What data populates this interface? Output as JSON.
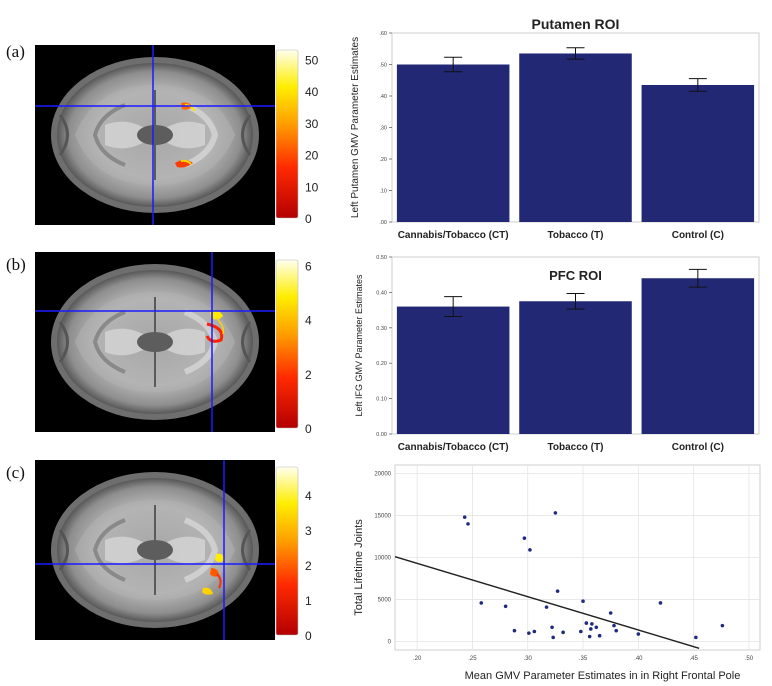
{
  "panels": [
    {
      "label": "(a)",
      "colorbar": {
        "ticks": [
          "50",
          "40",
          "30",
          "20",
          "10",
          "0"
        ],
        "max": 53
      }
    },
    {
      "label": "(b)",
      "colorbar": {
        "ticks": [
          "6",
          "4",
          "2",
          "0"
        ],
        "max": 6.2
      }
    },
    {
      "label": "(c)",
      "colorbar": {
        "ticks": [
          "4",
          "3",
          "2",
          "1",
          "0"
        ],
        "max": 4.8
      }
    }
  ],
  "chart_data": [
    {
      "type": "bar",
      "title": "Putamen ROI",
      "ylabel": "Left Putamen GMV Parameter Estimates",
      "categories": [
        "Cannabis/Tobacco (CT)",
        "Tobacco (T)",
        "Control (C)"
      ],
      "values": [
        0.5,
        0.535,
        0.435
      ],
      "errors": [
        0.023,
        0.018,
        0.02
      ],
      "ylim": [
        0.0,
        0.6
      ],
      "yticks": [
        ".00",
        ".10",
        ".20",
        ".30",
        ".40",
        ".50",
        ".60"
      ],
      "ytick_values": [
        0.0,
        0.1,
        0.2,
        0.3,
        0.4,
        0.5,
        0.6
      ],
      "bar_color": "#232875"
    },
    {
      "type": "bar",
      "title": "PFC ROI",
      "ylabel": "Left IFG GMV Parameter Estimates",
      "categories": [
        "Cannabis/Tobacco (CT)",
        "Tobacco (T)",
        "Control (C)"
      ],
      "values": [
        0.36,
        0.375,
        0.44
      ],
      "errors": [
        0.028,
        0.022,
        0.025
      ],
      "ylim": [
        0.0,
        0.5
      ],
      "yticks": [
        "0.00",
        "0.10",
        "0.20",
        "0.30",
        "0.40",
        "0.50"
      ],
      "ytick_values": [
        0.0,
        0.1,
        0.2,
        0.3,
        0.4,
        0.5
      ],
      "bar_color": "#232875"
    },
    {
      "type": "scatter",
      "xlabel": "Mean GMV Parameter Estimates in in Right Frontal Pole",
      "ylabel": "Total Lifetime Joints",
      "xlim": [
        0.18,
        0.51
      ],
      "ylim": [
        -1000,
        21000
      ],
      "xticks": [
        ".20",
        ".25",
        ".30",
        ".35",
        ".40",
        ".45",
        ".50"
      ],
      "xtick_values": [
        0.2,
        0.25,
        0.3,
        0.35,
        0.4,
        0.45,
        0.5
      ],
      "yticks": [
        "0",
        "5000",
        "10000",
        "15000",
        "20000"
      ],
      "ytick_values": [
        0,
        5000,
        10000,
        15000,
        20000
      ],
      "points": [
        [
          0.243,
          14800
        ],
        [
          0.246,
          14000
        ],
        [
          0.258,
          4600
        ],
        [
          0.28,
          4200
        ],
        [
          0.288,
          1300
        ],
        [
          0.297,
          12300
        ],
        [
          0.301,
          1000
        ],
        [
          0.302,
          10900
        ],
        [
          0.306,
          1200
        ],
        [
          0.317,
          4100
        ],
        [
          0.322,
          1700
        ],
        [
          0.323,
          500
        ],
        [
          0.325,
          15300
        ],
        [
          0.327,
          6000
        ],
        [
          0.332,
          1100
        ],
        [
          0.348,
          1200
        ],
        [
          0.35,
          4800
        ],
        [
          0.353,
          2200
        ],
        [
          0.356,
          600
        ],
        [
          0.357,
          1500
        ],
        [
          0.358,
          2100
        ],
        [
          0.362,
          1700
        ],
        [
          0.365,
          700
        ],
        [
          0.375,
          3400
        ],
        [
          0.378,
          1900
        ],
        [
          0.38,
          1300
        ],
        [
          0.4,
          900
        ],
        [
          0.42,
          4600
        ],
        [
          0.452,
          500
        ],
        [
          0.476,
          1900
        ]
      ],
      "fit_line": {
        "x": [
          0.18,
          0.455
        ],
        "y": [
          10100,
          -800
        ]
      },
      "point_color": "#1f2a80"
    }
  ]
}
